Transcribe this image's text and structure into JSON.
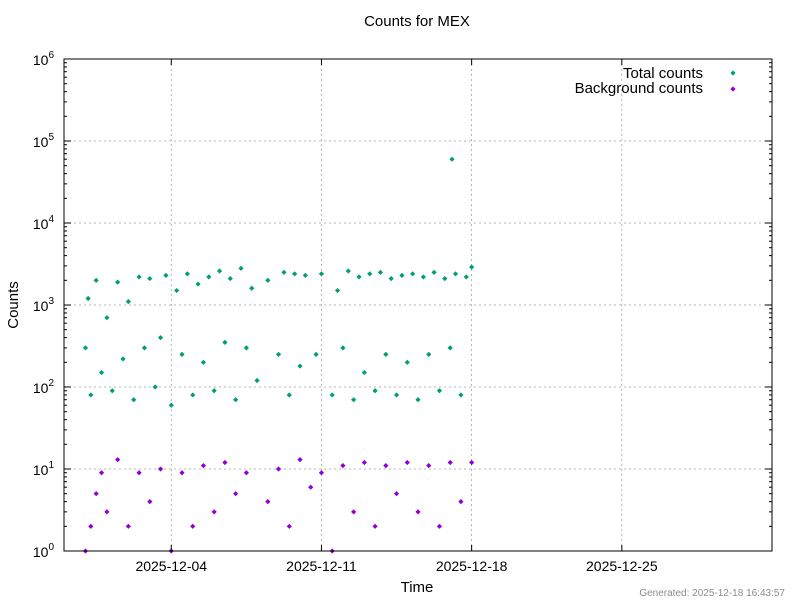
{
  "chart_data": {
    "type": "scatter",
    "title": "Counts for MEX",
    "xlabel": "Time",
    "ylabel": "Counts",
    "x_range": [
      "2025-11-29 00:00",
      "2026-01-01 00:00"
    ],
    "ylim": [
      1,
      1000000
    ],
    "y_scale": "log",
    "grid": true,
    "legend_position": "top-right",
    "x_tick_labels": [
      "2025-12-04",
      "2025-12-11",
      "2025-12-18",
      "2025-12-25"
    ],
    "y_ticks": [
      {
        "base": "10",
        "exp": "0",
        "value": 1
      },
      {
        "base": "10",
        "exp": "1",
        "value": 10
      },
      {
        "base": "10",
        "exp": "2",
        "value": 100
      },
      {
        "base": "10",
        "exp": "3",
        "value": 1000
      },
      {
        "base": "10",
        "exp": "4",
        "value": 10000
      },
      {
        "base": "10",
        "exp": "5",
        "value": 100000
      },
      {
        "base": "10",
        "exp": "6",
        "value": 1000000
      }
    ],
    "series": [
      {
        "name": "Total counts",
        "color": "#009e73",
        "marker": "diamond",
        "points": [
          [
            "2025-11-30 00:00",
            300
          ],
          [
            "2025-11-30 03:00",
            1200
          ],
          [
            "2025-11-30 06:00",
            80
          ],
          [
            "2025-11-30 12:00",
            2000
          ],
          [
            "2025-11-30 18:00",
            150
          ],
          [
            "2025-12-01 00:00",
            700
          ],
          [
            "2025-12-01 06:00",
            90
          ],
          [
            "2025-12-01 12:00",
            1900
          ],
          [
            "2025-12-01 18:00",
            220
          ],
          [
            "2025-12-02 00:00",
            1100
          ],
          [
            "2025-12-02 06:00",
            70
          ],
          [
            "2025-12-02 12:00",
            2200
          ],
          [
            "2025-12-02 18:00",
            300
          ],
          [
            "2025-12-03 00:00",
            2100
          ],
          [
            "2025-12-03 06:00",
            100
          ],
          [
            "2025-12-03 12:00",
            400
          ],
          [
            "2025-12-03 18:00",
            2300
          ],
          [
            "2025-12-04 00:00",
            60
          ],
          [
            "2025-12-04 06:00",
            1500
          ],
          [
            "2025-12-04 12:00",
            250
          ],
          [
            "2025-12-04 18:00",
            2400
          ],
          [
            "2025-12-05 00:00",
            80
          ],
          [
            "2025-12-05 06:00",
            1800
          ],
          [
            "2025-12-05 12:00",
            200
          ],
          [
            "2025-12-05 18:00",
            2200
          ],
          [
            "2025-12-06 00:00",
            90
          ],
          [
            "2025-12-06 06:00",
            2600
          ],
          [
            "2025-12-06 12:00",
            350
          ],
          [
            "2025-12-06 18:00",
            2100
          ],
          [
            "2025-12-07 00:00",
            70
          ],
          [
            "2025-12-07 06:00",
            2800
          ],
          [
            "2025-12-07 12:00",
            300
          ],
          [
            "2025-12-07 18:00",
            1600
          ],
          [
            "2025-12-08 00:00",
            120
          ],
          [
            "2025-12-08 12:00",
            2000
          ],
          [
            "2025-12-09 00:00",
            250
          ],
          [
            "2025-12-09 06:00",
            2500
          ],
          [
            "2025-12-09 12:00",
            80
          ],
          [
            "2025-12-09 18:00",
            2400
          ],
          [
            "2025-12-10 00:00",
            180
          ],
          [
            "2025-12-10 06:00",
            2300
          ],
          [
            "2025-12-10 18:00",
            250
          ],
          [
            "2025-12-11 00:00",
            2400
          ],
          [
            "2025-12-11 12:00",
            80
          ],
          [
            "2025-12-11 18:00",
            1500
          ],
          [
            "2025-12-12 00:00",
            300
          ],
          [
            "2025-12-12 06:00",
            2600
          ],
          [
            "2025-12-12 12:00",
            70
          ],
          [
            "2025-12-12 18:00",
            2200
          ],
          [
            "2025-12-13 00:00",
            150
          ],
          [
            "2025-12-13 06:00",
            2400
          ],
          [
            "2025-12-13 12:00",
            90
          ],
          [
            "2025-12-13 18:00",
            2500
          ],
          [
            "2025-12-14 00:00",
            250
          ],
          [
            "2025-12-14 06:00",
            2100
          ],
          [
            "2025-12-14 12:00",
            80
          ],
          [
            "2025-12-14 18:00",
            2300
          ],
          [
            "2025-12-15 00:00",
            200
          ],
          [
            "2025-12-15 06:00",
            2400
          ],
          [
            "2025-12-15 12:00",
            70
          ],
          [
            "2025-12-15 18:00",
            2200
          ],
          [
            "2025-12-16 00:00",
            250
          ],
          [
            "2025-12-16 06:00",
            2500
          ],
          [
            "2025-12-16 12:00",
            90
          ],
          [
            "2025-12-16 18:00",
            2100
          ],
          [
            "2025-12-17 00:00",
            300
          ],
          [
            "2025-12-17 02:00",
            60000
          ],
          [
            "2025-12-17 06:00",
            2400
          ],
          [
            "2025-12-17 12:00",
            80
          ],
          [
            "2025-12-17 18:00",
            2200
          ],
          [
            "2025-12-18 00:00",
            2900
          ]
        ]
      },
      {
        "name": "Background counts",
        "color": "#9400d3",
        "marker": "diamond",
        "points": [
          [
            "2025-11-30 00:00",
            1
          ],
          [
            "2025-11-30 06:00",
            2
          ],
          [
            "2025-11-30 12:00",
            5
          ],
          [
            "2025-11-30 18:00",
            9
          ],
          [
            "2025-12-01 00:00",
            3
          ],
          [
            "2025-12-01 12:00",
            13
          ],
          [
            "2025-12-02 00:00",
            2
          ],
          [
            "2025-12-02 12:00",
            9
          ],
          [
            "2025-12-03 00:00",
            4
          ],
          [
            "2025-12-03 12:00",
            10
          ],
          [
            "2025-12-04 00:00",
            1
          ],
          [
            "2025-12-04 12:00",
            9
          ],
          [
            "2025-12-05 00:00",
            2
          ],
          [
            "2025-12-05 12:00",
            11
          ],
          [
            "2025-12-06 00:00",
            3
          ],
          [
            "2025-12-06 12:00",
            12
          ],
          [
            "2025-12-07 00:00",
            5
          ],
          [
            "2025-12-07 12:00",
            9
          ],
          [
            "2025-12-08 12:00",
            4
          ],
          [
            "2025-12-09 00:00",
            10
          ],
          [
            "2025-12-09 12:00",
            2
          ],
          [
            "2025-12-10 00:00",
            13
          ],
          [
            "2025-12-10 12:00",
            6
          ],
          [
            "2025-12-11 00:00",
            9
          ],
          [
            "2025-12-11 12:00",
            1
          ],
          [
            "2025-12-12 00:00",
            11
          ],
          [
            "2025-12-12 12:00",
            3
          ],
          [
            "2025-12-13 00:00",
            12
          ],
          [
            "2025-12-13 12:00",
            2
          ],
          [
            "2025-12-14 00:00",
            11
          ],
          [
            "2025-12-14 12:00",
            5
          ],
          [
            "2025-12-15 00:00",
            12
          ],
          [
            "2025-12-15 12:00",
            3
          ],
          [
            "2025-12-16 00:00",
            11
          ],
          [
            "2025-12-16 12:00",
            2
          ],
          [
            "2025-12-17 00:00",
            12
          ],
          [
            "2025-12-17 12:00",
            4
          ],
          [
            "2025-12-18 00:00",
            12
          ]
        ]
      }
    ]
  },
  "footer": {
    "generated": "Generated: 2025-12-18 16:43:57"
  }
}
